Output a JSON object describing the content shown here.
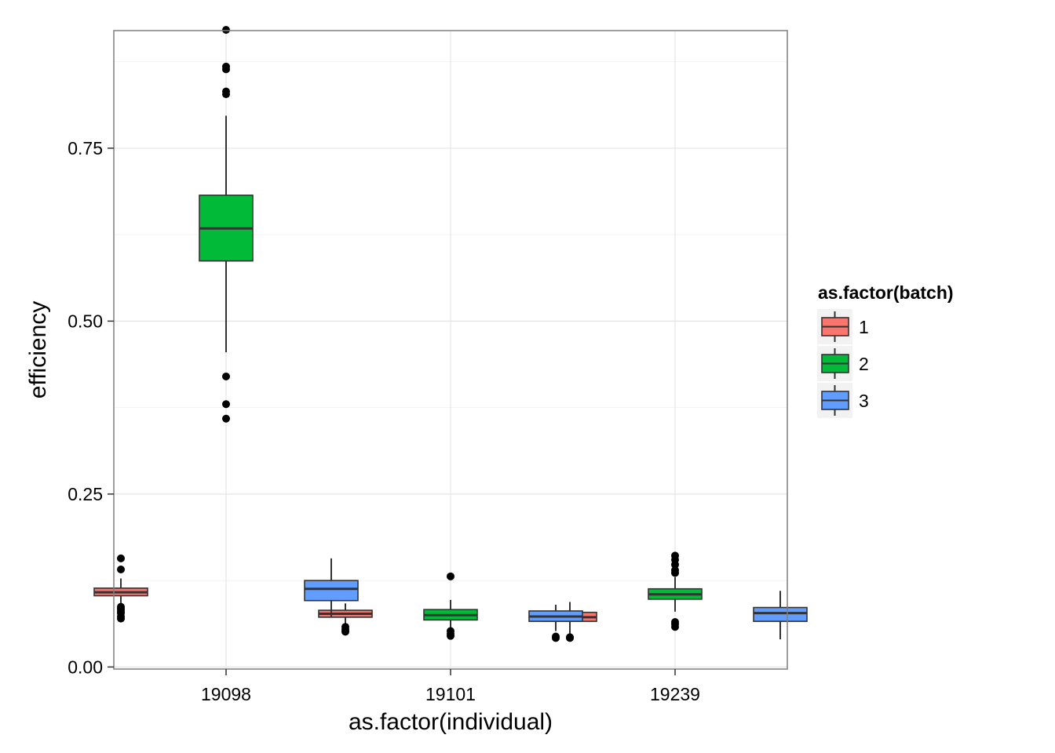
{
  "chart_data": {
    "type": "boxplot",
    "xlabel": "as.factor(individual)",
    "ylabel": "efficiency",
    "categories": [
      "19098",
      "19101",
      "19239"
    ],
    "ylim": [
      -0.003,
      0.92
    ],
    "y_ticks": [
      0.0,
      0.25,
      0.5,
      0.75
    ],
    "y_tick_labels": [
      "0.00",
      "0.25",
      "0.50",
      "0.75"
    ],
    "grid": true,
    "legend": {
      "title": "as.factor(batch)",
      "placement": "right",
      "entries": [
        {
          "label": "1",
          "color": "#F8766D"
        },
        {
          "label": "2",
          "color": "#00BA38"
        },
        {
          "label": "3",
          "color": "#619CFF"
        }
      ]
    },
    "series": [
      {
        "name": "1",
        "color": "#F8766D",
        "boxes": [
          {
            "category": "19098",
            "whisker_low": 0.09,
            "q1": 0.103,
            "median": 0.108,
            "q3": 0.114,
            "whisker_high": 0.128,
            "outliers": [
              0.157,
              0.141,
              0.087,
              0.084,
              0.081,
              0.078,
              0.073,
              0.07
            ]
          },
          {
            "category": "19101",
            "whisker_low": 0.063,
            "q1": 0.072,
            "median": 0.077,
            "q3": 0.082,
            "whisker_high": 0.092,
            "outliers": [
              0.101,
              0.058,
              0.054,
              0.051
            ]
          },
          {
            "category": "19239",
            "whisker_low": 0.046,
            "q1": 0.066,
            "median": 0.072,
            "q3": 0.079,
            "whisker_high": 0.094,
            "outliers": [
              0.043,
              0.042
            ]
          }
        ]
      },
      {
        "name": "2",
        "color": "#00BA38",
        "boxes": [
          {
            "category": "19098",
            "whisker_low": 0.455,
            "q1": 0.587,
            "median": 0.634,
            "q3": 0.682,
            "whisker_high": 0.797,
            "outliers": [
              0.921,
              0.868,
              0.864,
              0.832,
              0.828,
              0.42,
              0.38,
              0.359
            ]
          },
          {
            "category": "19101",
            "whisker_low": 0.056,
            "q1": 0.068,
            "median": 0.075,
            "q3": 0.083,
            "whisker_high": 0.097,
            "outliers": [
              0.131,
              0.052,
              0.048,
              0.045
            ]
          },
          {
            "category": "19239",
            "whisker_low": 0.08,
            "q1": 0.098,
            "median": 0.105,
            "q3": 0.113,
            "whisker_high": 0.13,
            "outliers": [
              0.161,
              0.155,
              0.148,
              0.14,
              0.136,
              0.065,
              0.062,
              0.058
            ]
          }
        ]
      },
      {
        "name": "3",
        "color": "#619CFF",
        "boxes": [
          {
            "category": "19098",
            "whisker_low": 0.072,
            "q1": 0.096,
            "median": 0.113,
            "q3": 0.125,
            "whisker_high": 0.157,
            "outliers": []
          },
          {
            "category": "19101",
            "whisker_low": 0.052,
            "q1": 0.066,
            "median": 0.073,
            "q3": 0.081,
            "whisker_high": 0.09,
            "outliers": [
              0.044,
              0.042
            ]
          },
          {
            "category": "19239",
            "whisker_low": 0.04,
            "q1": 0.066,
            "median": 0.078,
            "q3": 0.086,
            "whisker_high": 0.11,
            "outliers": []
          }
        ]
      }
    ]
  }
}
